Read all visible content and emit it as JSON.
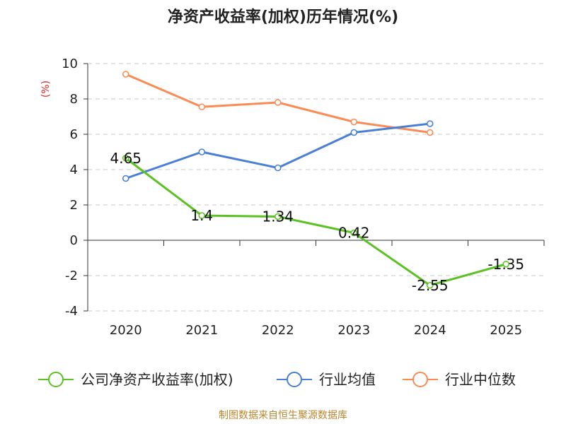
{
  "chart_data": {
    "type": "line",
    "title": "净资产收益率(加权)历年情况(%)",
    "ylabel": "(%)",
    "xlabel": "",
    "categories": [
      "2020",
      "2021",
      "2022",
      "2023",
      "2024",
      "2025"
    ],
    "ylim": [
      -4,
      10
    ],
    "yticks": [
      -4,
      -2,
      0,
      2,
      4,
      6,
      8,
      10
    ],
    "grid": true,
    "legend_position": "bottom",
    "series": [
      {
        "name": "公司净资产收益率(加权)",
        "color": "#5cc122",
        "values": [
          4.65,
          1.4,
          1.34,
          0.42,
          -2.55,
          -1.35
        ],
        "labels": [
          "4.65",
          "1.4",
          "1.34",
          "0.42",
          "-2.55",
          "-1.35"
        ],
        "show_labels": true
      },
      {
        "name": "行业均值",
        "color": "#4a7fd6",
        "values": [
          3.5,
          5.0,
          4.1,
          6.1,
          6.6,
          null
        ],
        "show_labels": false
      },
      {
        "name": "行业中位数",
        "color": "#fa8b55",
        "values": [
          9.4,
          7.55,
          7.8,
          6.7,
          6.1,
          null
        ],
        "show_labels": false
      }
    ],
    "source": "制图数据来自恒生聚源数据库"
  }
}
